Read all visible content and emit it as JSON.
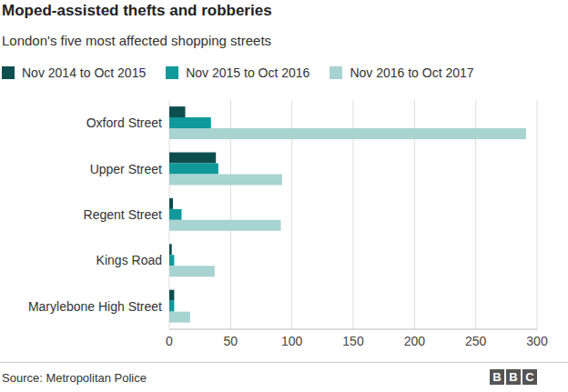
{
  "chart_data": {
    "type": "bar",
    "title": "Moped-assisted thefts and robberies",
    "subtitle": "London's five most affected shopping streets",
    "source": "Source: Metropolitan Police",
    "credit": "BBC",
    "orientation": "horizontal",
    "categories": [
      "Oxford Street",
      "Upper Street",
      "Regent Street",
      "Kings Road",
      "Marylebone High Street"
    ],
    "series": [
      {
        "name": "Nov 2014 to Oct 2015",
        "color": "#0d4f4f",
        "values": [
          13,
          38,
          3,
          2,
          4
        ]
      },
      {
        "name": "Nov 2015 to Oct 2016",
        "color": "#10999a",
        "values": [
          34,
          40,
          10,
          4,
          4
        ]
      },
      {
        "name": "Nov 2016 to Oct 2017",
        "color": "#a7d3d1",
        "values": [
          291,
          92,
          91,
          37,
          17
        ]
      }
    ],
    "xlim": [
      0,
      300
    ],
    "xticks": [
      0,
      50,
      100,
      150,
      200,
      250,
      300
    ],
    "grid": true
  }
}
